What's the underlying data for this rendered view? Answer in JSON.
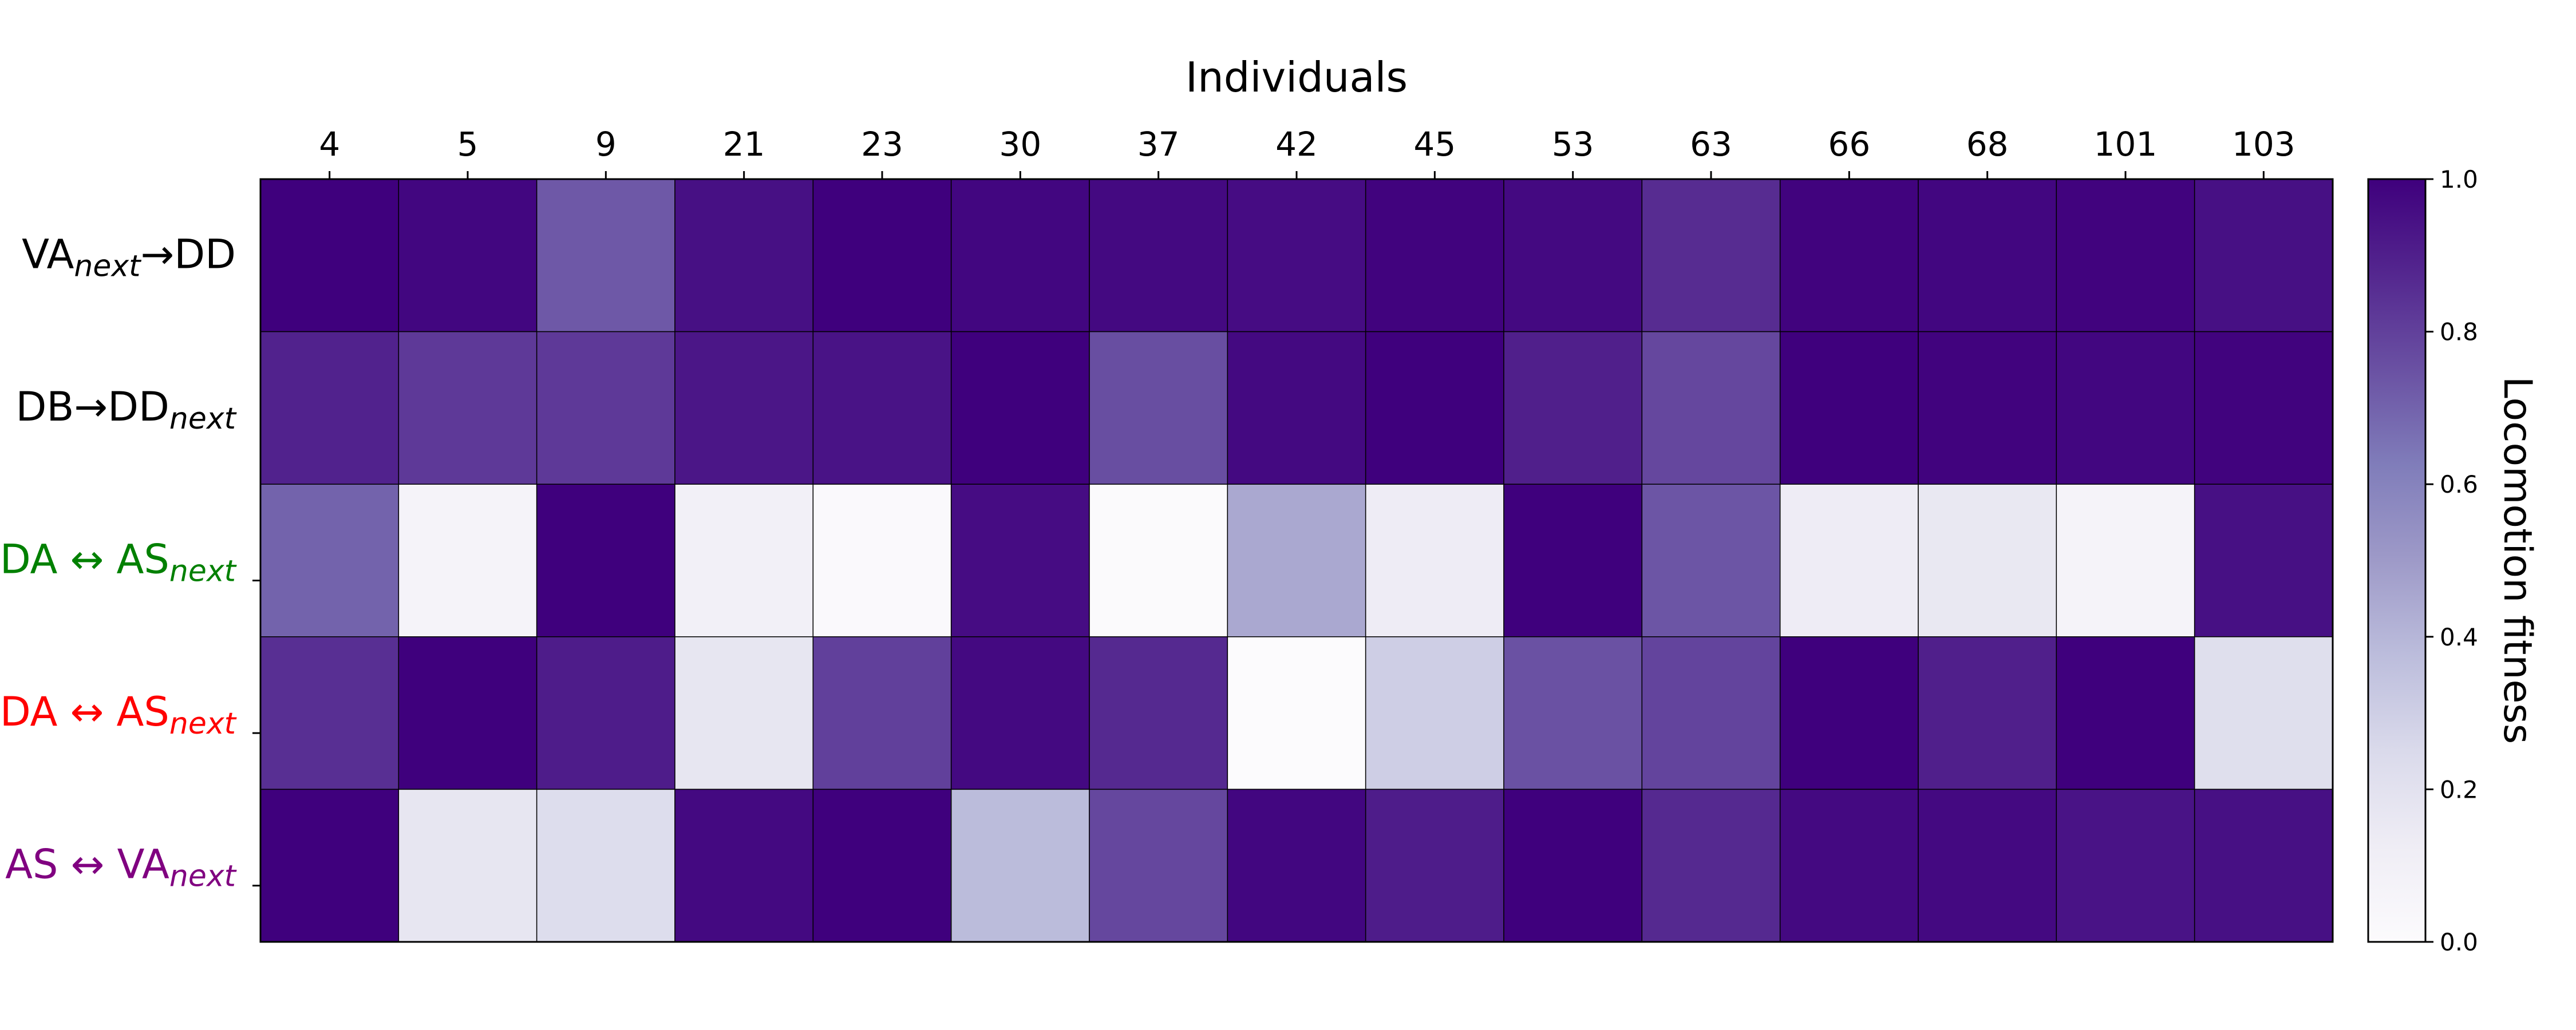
{
  "chart_data": {
    "type": "heatmap",
    "xlabel": "Individuals",
    "x_categories": [
      "4",
      "5",
      "9",
      "21",
      "23",
      "30",
      "37",
      "42",
      "45",
      "53",
      "63",
      "66",
      "68",
      "101",
      "103"
    ],
    "y_categories": [
      {
        "base": "VA",
        "sub": "next",
        "arrow": "→",
        "tail": "DD",
        "tail_sub": "",
        "color": "#000000"
      },
      {
        "base": "DB",
        "sub": "",
        "arrow": "→",
        "tail": "DD",
        "tail_sub": "next",
        "color": "#000000"
      },
      {
        "base": "DA",
        "sub": "",
        "arrow": "↔",
        "tail": "AS",
        "tail_sub": "next",
        "color": "#008000"
      },
      {
        "base": "DA",
        "sub": "",
        "arrow": "↔",
        "tail": "AS",
        "tail_sub": "next",
        "color": "#ff0000"
      },
      {
        "base": "AS",
        "sub": "",
        "arrow": "↔",
        "tail": "VA",
        "tail_sub": "next",
        "color": "#800080"
      }
    ],
    "values": [
      [
        1.0,
        0.98,
        0.73,
        0.95,
        1.0,
        0.98,
        0.97,
        0.96,
        0.99,
        0.97,
        0.86,
        0.99,
        0.98,
        0.99,
        0.95
      ],
      [
        0.89,
        0.82,
        0.82,
        0.93,
        0.94,
        1.0,
        0.76,
        0.97,
        1.0,
        0.9,
        0.78,
        1.0,
        0.99,
        0.98,
        0.99
      ],
      [
        0.7,
        0.07,
        1.0,
        0.1,
        0.02,
        0.96,
        0.01,
        0.45,
        0.13,
        1.0,
        0.74,
        0.13,
        0.16,
        0.07,
        0.95
      ],
      [
        0.85,
        1.0,
        0.91,
        0.17,
        0.8,
        0.97,
        0.87,
        0.0,
        0.3,
        0.75,
        0.79,
        1.0,
        0.9,
        1.0,
        0.22
      ],
      [
        1.0,
        0.17,
        0.23,
        0.97,
        1.0,
        0.38,
        0.78,
        0.98,
        0.91,
        1.0,
        0.87,
        0.97,
        0.97,
        0.94,
        0.95
      ]
    ],
    "colorbar": {
      "label": "Locomotion fitness",
      "range": [
        0.0,
        1.0
      ],
      "ticks": [
        "0.0",
        "0.2",
        "0.4",
        "0.6",
        "0.8",
        "1.0"
      ],
      "colormap": "Purples"
    }
  }
}
